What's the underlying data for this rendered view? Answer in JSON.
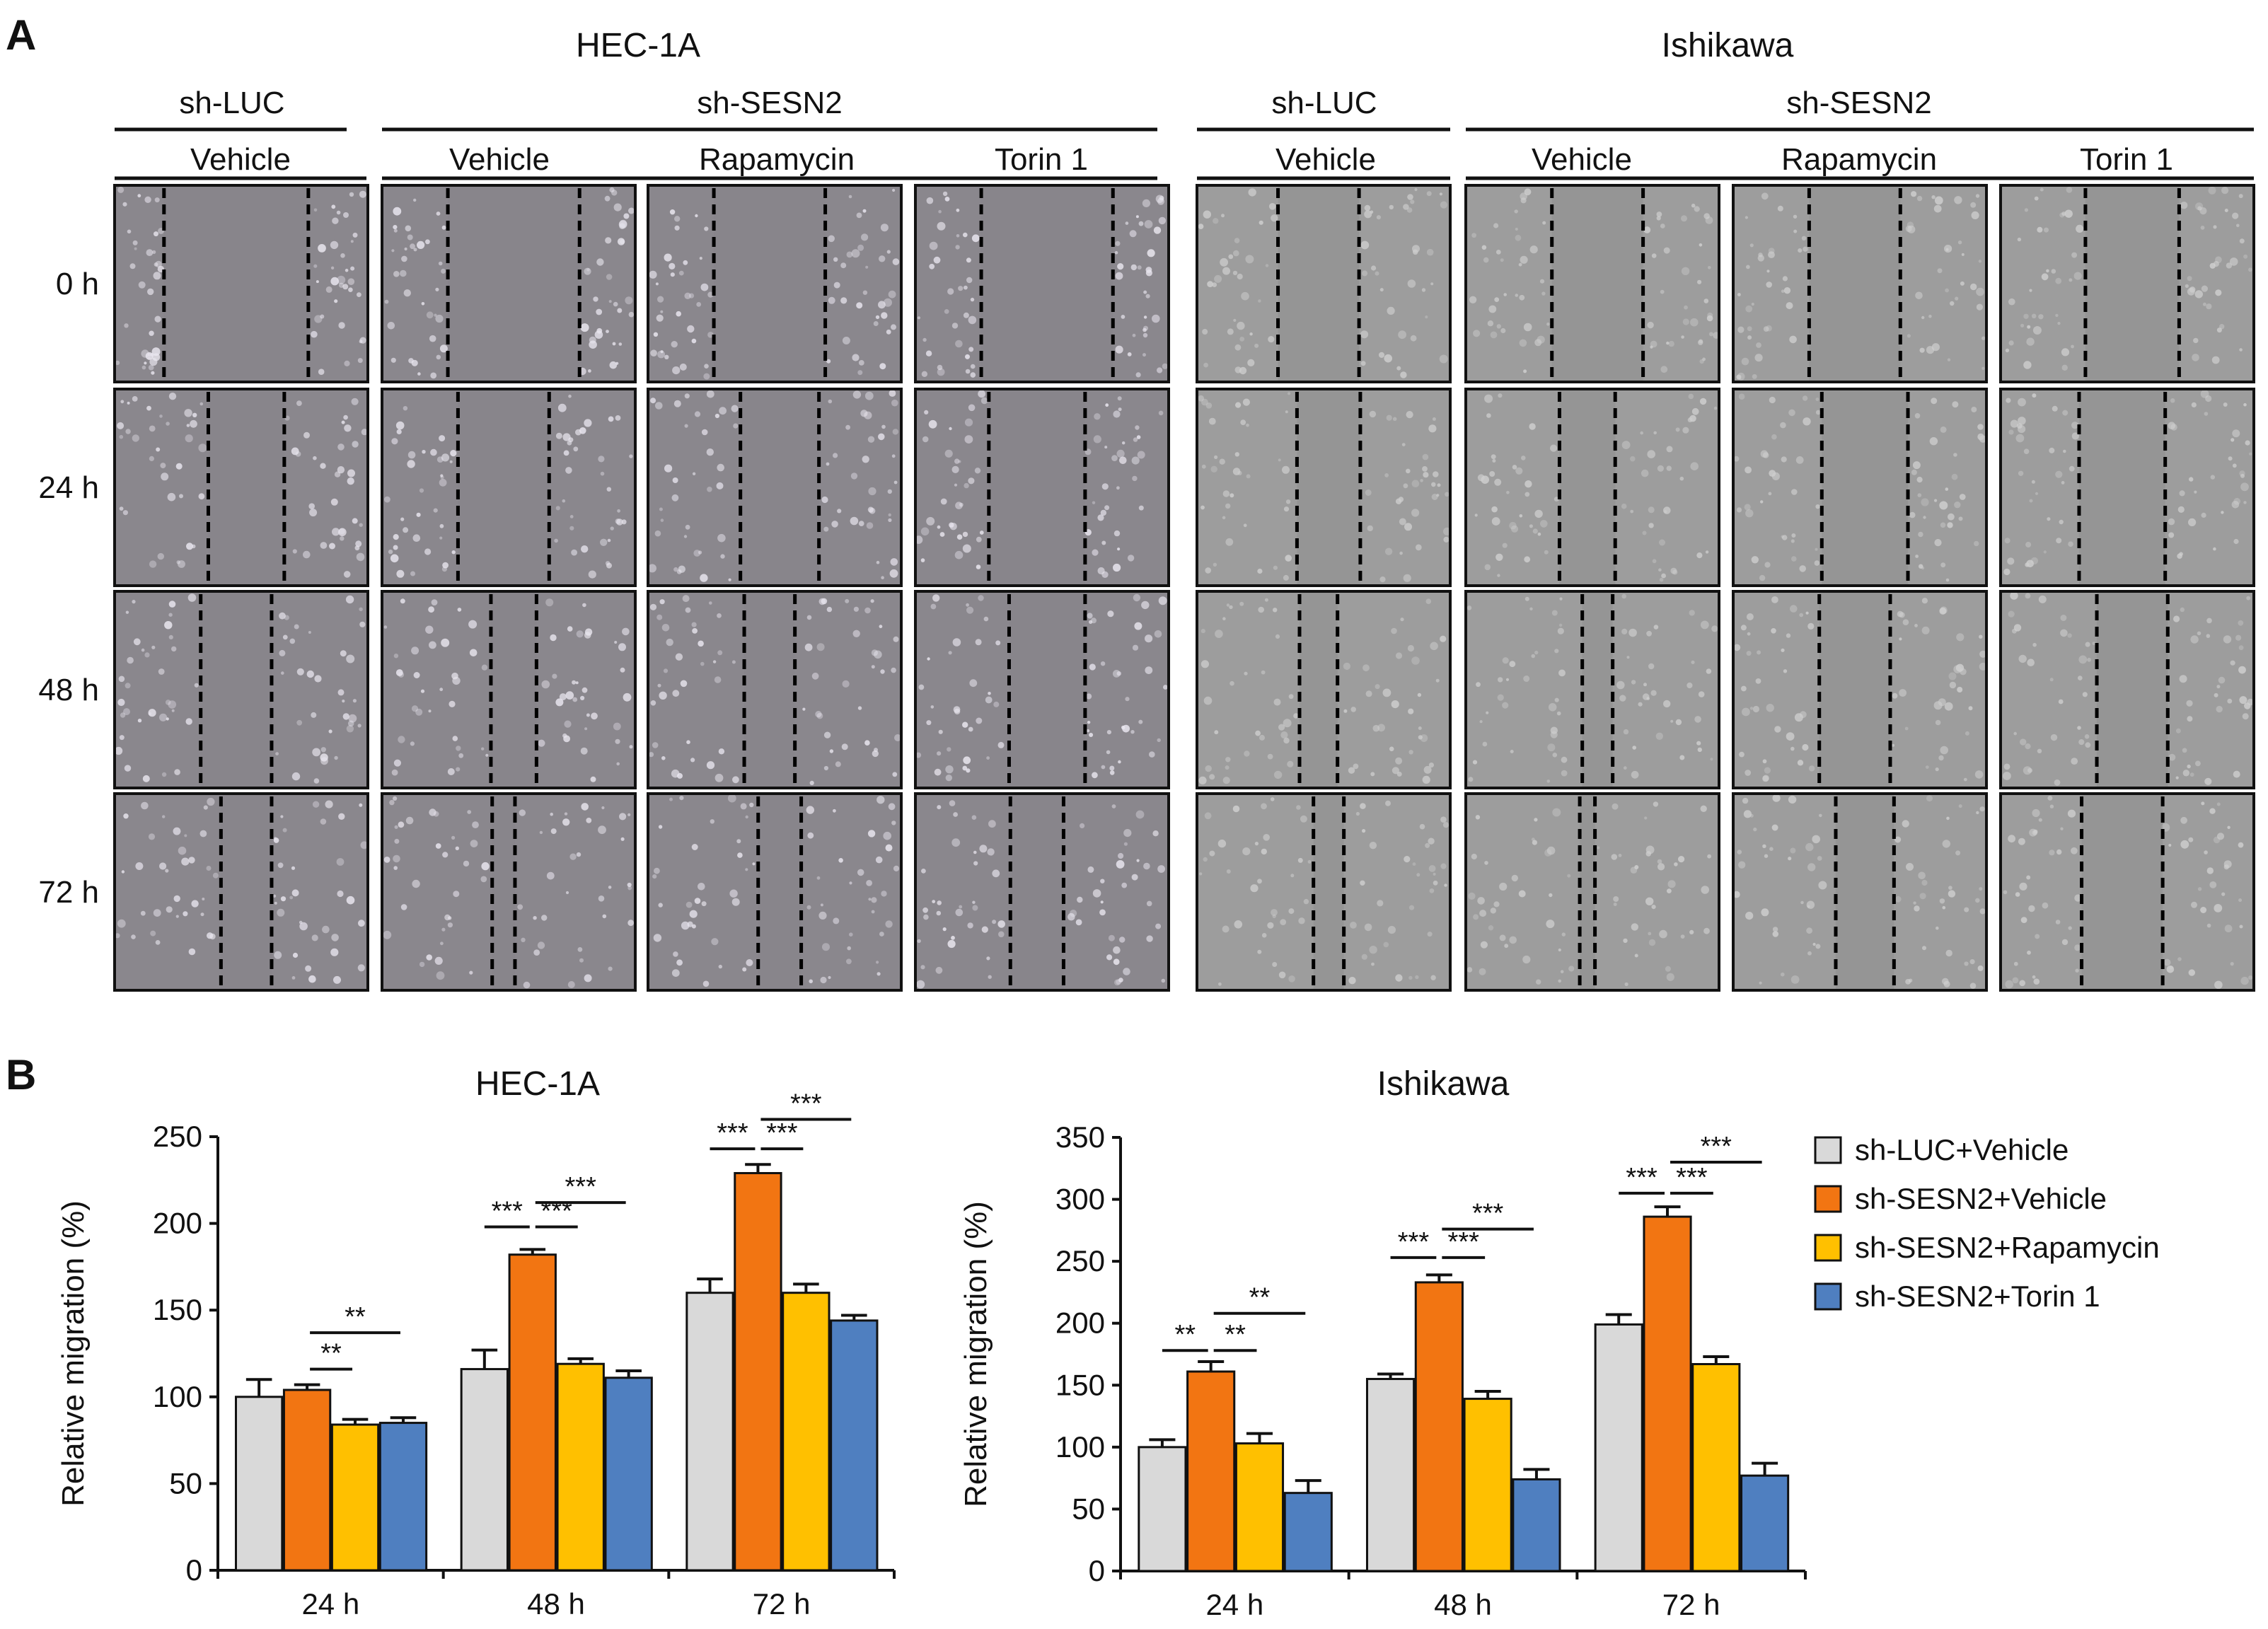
{
  "panel_a": {
    "label": "A",
    "time_labels": [
      "0 h",
      "24 h",
      "48 h",
      "72 h"
    ],
    "cell_lines": [
      {
        "name": "HEC-1A",
        "shrna_groups": [
          {
            "label": "sh-LUC",
            "treatments": [
              "Vehicle"
            ]
          },
          {
            "label": "sh-SESN2",
            "treatments": [
              "Vehicle",
              "Rapamycin",
              "Torin 1"
            ]
          }
        ],
        "image_tone": "#8a878d",
        "cell_color": "#e9e6ef",
        "wound_color": "#86848a",
        "wound_fraction": [
          [
            0.57,
            0.52,
            0.44,
            0.52
          ],
          [
            0.3,
            0.36,
            0.31,
            0.38
          ],
          [
            0.28,
            0.18,
            0.2,
            0.3
          ],
          [
            0.2,
            0.09,
            0.17,
            0.21
          ]
        ]
      },
      {
        "name": "Ishikawa",
        "shrna_groups": [
          {
            "label": "sh-LUC",
            "treatments": [
              "Vehicle"
            ]
          },
          {
            "label": "sh-SESN2",
            "treatments": [
              "Vehicle",
              "Rapamycin",
              "Torin 1"
            ]
          }
        ],
        "image_tone": "#9d9d9d",
        "cell_color": "#cfcfcf",
        "wound_color": "#8e8e8e",
        "wound_fraction": [
          [
            0.32,
            0.36,
            0.36,
            0.37
          ],
          [
            0.25,
            0.22,
            0.34,
            0.34
          ],
          [
            0.15,
            0.12,
            0.28,
            0.28
          ],
          [
            0.12,
            0.06,
            0.23,
            0.32
          ]
        ]
      }
    ]
  },
  "panel_b": {
    "label": "B",
    "legend": [
      {
        "name": "sh-LUC+Vehicle",
        "color": "#d9d9d9"
      },
      {
        "name": "sh-SESN2+Vehicle",
        "color": "#f27512"
      },
      {
        "name": "sh-SESN2+Rapamycin",
        "color": "#ffc000"
      },
      {
        "name": "sh-SESN2+Torin  1",
        "color": "#4f7fc0"
      }
    ]
  },
  "chart_data": [
    {
      "type": "bar",
      "title": "HEC-1A",
      "xlabel": "",
      "ylabel": "Relative  migration  (%)",
      "categories": [
        "24 h",
        "48 h",
        "72 h"
      ],
      "ylim": [
        0,
        250
      ],
      "yticks": [
        "0",
        "50",
        "100",
        "150",
        "200",
        "250"
      ],
      "grid": false,
      "series": [
        {
          "name": "sh-LUC+Vehicle",
          "values": [
            100,
            116,
            160
          ],
          "errors": [
            10,
            11,
            8
          ]
        },
        {
          "name": "sh-SESN2+Vehicle",
          "values": [
            104,
            182,
            229
          ],
          "errors": [
            3,
            3,
            5
          ]
        },
        {
          "name": "sh-SESN2+Rapamycin",
          "values": [
            84,
            119,
            160
          ],
          "errors": [
            3,
            3,
            5
          ]
        },
        {
          "name": "sh-SESN2+Torin  1",
          "values": [
            85,
            111,
            144
          ],
          "errors": [
            3,
            4,
            3
          ]
        }
      ],
      "significance": [
        {
          "category": 0,
          "from": 1,
          "to": 2,
          "y": 116,
          "label": "**"
        },
        {
          "category": 0,
          "from": 1,
          "to": 3,
          "y": 137,
          "label": "**"
        },
        {
          "category": 1,
          "from": 0,
          "to": 1,
          "y": 198,
          "label": "***"
        },
        {
          "category": 1,
          "from": 1,
          "to": 2,
          "y": 198,
          "label": "***"
        },
        {
          "category": 1,
          "from": 1,
          "to": 3,
          "y": 212,
          "label": "***"
        },
        {
          "category": 2,
          "from": 0,
          "to": 1,
          "y": 243,
          "label": "***"
        },
        {
          "category": 2,
          "from": 1,
          "to": 2,
          "y": 243,
          "label": "***"
        },
        {
          "category": 2,
          "from": 1,
          "to": 3,
          "y": 260,
          "label": "***"
        }
      ]
    },
    {
      "type": "bar",
      "title": "Ishikawa",
      "xlabel": "",
      "ylabel": "Relative  migration  (%)",
      "categories": [
        "24 h",
        "48 h",
        "72 h"
      ],
      "ylim": [
        0,
        350
      ],
      "yticks": [
        "0",
        "50",
        "100",
        "150",
        "200",
        "250",
        "300",
        "350"
      ],
      "grid": false,
      "series": [
        {
          "name": "sh-LUC+Vehicle",
          "values": [
            100,
            155,
            199
          ],
          "errors": [
            6,
            4,
            8
          ]
        },
        {
          "name": "sh-SESN2+Vehicle",
          "values": [
            161,
            233,
            286
          ],
          "errors": [
            8,
            6,
            8
          ]
        },
        {
          "name": "sh-SESN2+Rapamycin",
          "values": [
            103,
            139,
            167
          ],
          "errors": [
            8,
            6,
            6
          ]
        },
        {
          "name": "sh-SESN2+Torin  1",
          "values": [
            63,
            74,
            77
          ],
          "errors": [
            10,
            8,
            10
          ]
        }
      ],
      "significance": [
        {
          "category": 0,
          "from": 0,
          "to": 1,
          "y": 178,
          "label": "**"
        },
        {
          "category": 0,
          "from": 1,
          "to": 2,
          "y": 178,
          "label": "**"
        },
        {
          "category": 0,
          "from": 1,
          "to": 3,
          "y": 208,
          "label": "**"
        },
        {
          "category": 1,
          "from": 0,
          "to": 1,
          "y": 253,
          "label": "***"
        },
        {
          "category": 1,
          "from": 1,
          "to": 2,
          "y": 253,
          "label": "***"
        },
        {
          "category": 1,
          "from": 1,
          "to": 3,
          "y": 276,
          "label": "***"
        },
        {
          "category": 2,
          "from": 0,
          "to": 1,
          "y": 305,
          "label": "***"
        },
        {
          "category": 2,
          "from": 1,
          "to": 2,
          "y": 305,
          "label": "***"
        },
        {
          "category": 2,
          "from": 1,
          "to": 3,
          "y": 330,
          "label": "***"
        }
      ]
    }
  ]
}
